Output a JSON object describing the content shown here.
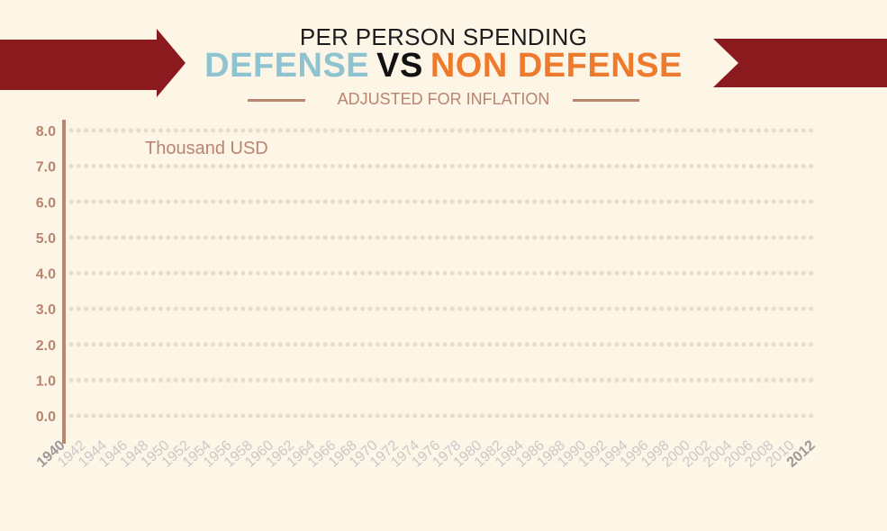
{
  "header": {
    "title_line1": "PER PERSON SPENDING",
    "title_defense": "DEFENSE",
    "title_vs": "VS",
    "title_non_defense": "NON DEFENSE",
    "subtitle": "ADJUSTED FOR INFLATION"
  },
  "colors": {
    "banner": "#8b1a1f",
    "defense": "#8ec3cf",
    "non_defense": "#ee7a2e",
    "axis": "#b98470",
    "grid_dot": "#e9dcc8",
    "year_label": "#c9c9c9",
    "year_label_ends": "#9a9a9a"
  },
  "chart_data": {
    "type": "line",
    "unit_label": "Thousand USD",
    "y_ticks": [
      "8.0",
      "7.0",
      "6.0",
      "5.0",
      "4.0",
      "3.0",
      "2.0",
      "1.0",
      "0.0"
    ],
    "ylim": [
      0,
      8
    ],
    "x_tick_labels": [
      "1940",
      "1942",
      "1944",
      "1946",
      "1948",
      "1950",
      "1952",
      "1954",
      "1956",
      "1958",
      "1960",
      "1962",
      "1964",
      "1966",
      "1968",
      "1970",
      "1972",
      "1974",
      "1976",
      "1978",
      "1980",
      "1982",
      "1984",
      "1986",
      "1988",
      "1990",
      "1992",
      "1994",
      "1996",
      "1998",
      "2000",
      "2002",
      "2004",
      "2006",
      "2008",
      "2010",
      "2012"
    ],
    "xlim": [
      1940,
      2012
    ],
    "grid": true,
    "series": []
  }
}
